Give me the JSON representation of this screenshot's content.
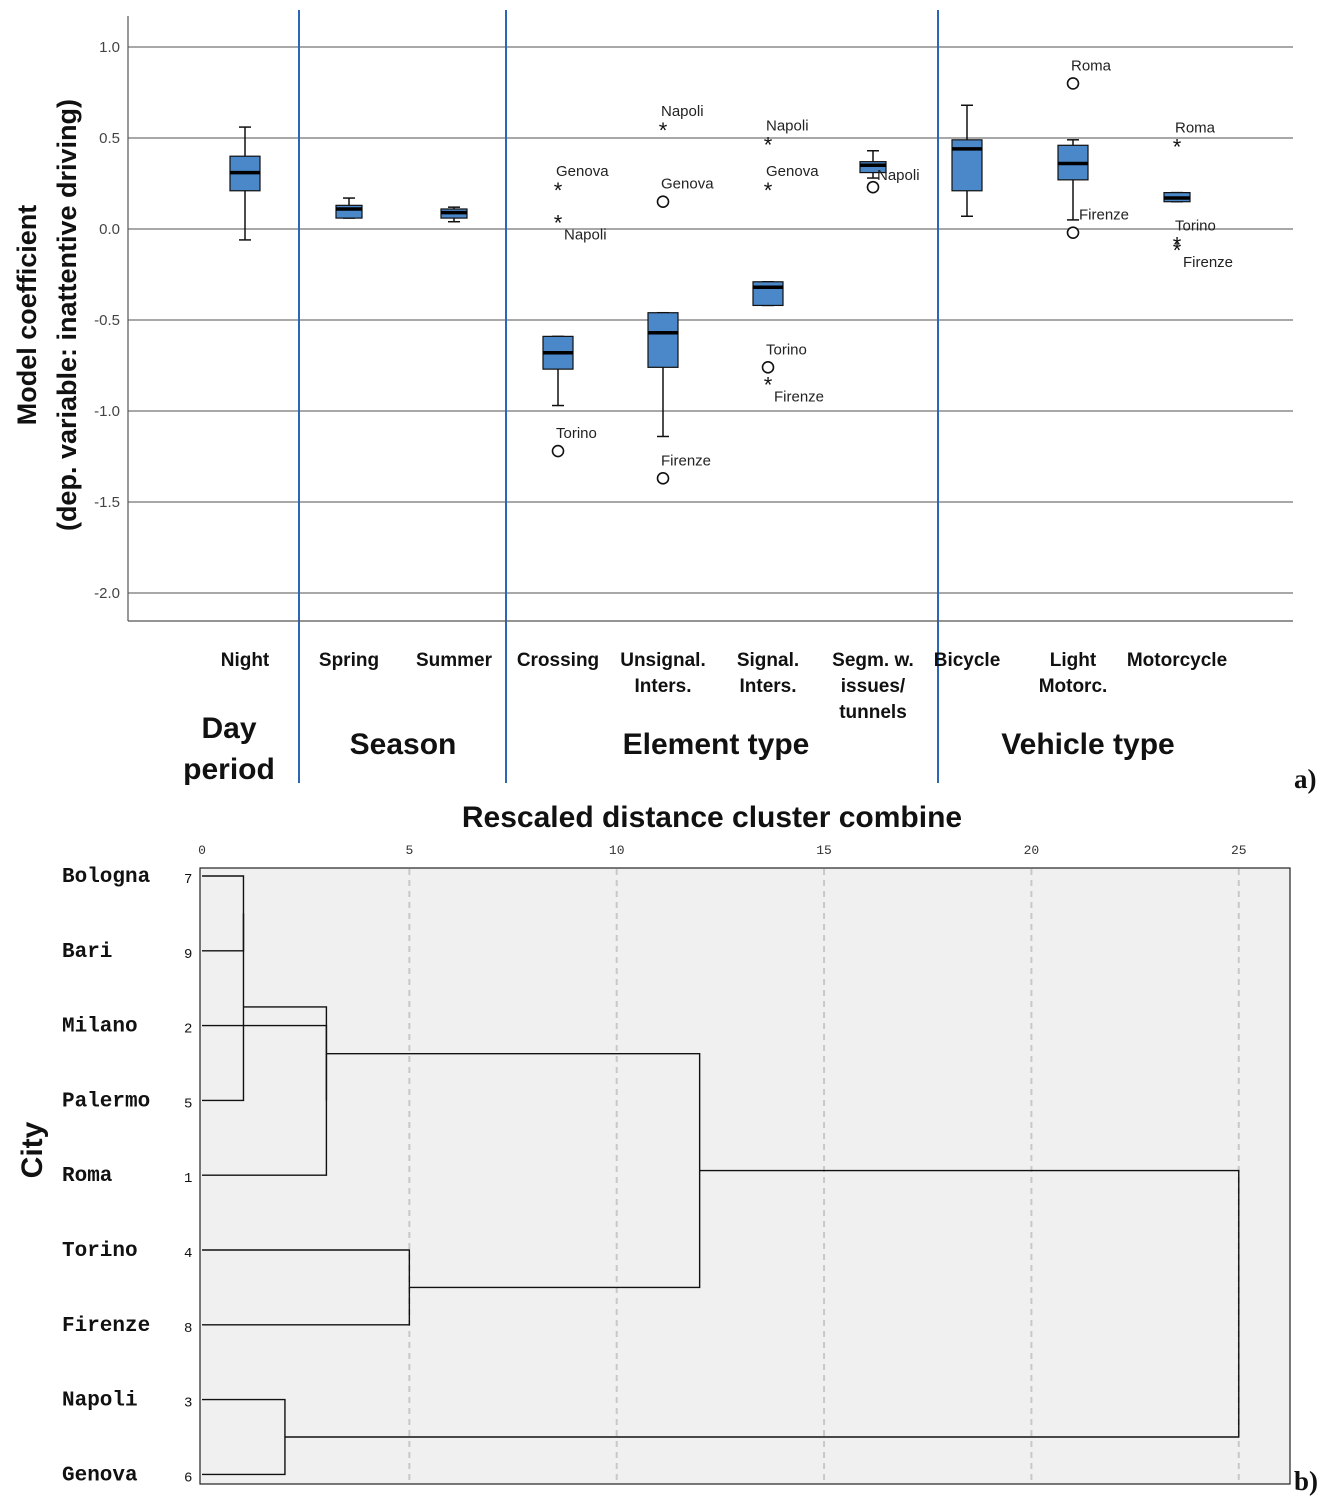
{
  "panel_a": {
    "tag": "a)",
    "ylabel_line1": "Model coefficient",
    "ylabel_line2": "(dep. variable: inattentive driving)",
    "chart_data": {
      "type": "boxplot",
      "ylabel": "Model coefficient (dep. variable: inattentive driving)",
      "ylim": [
        -2.15,
        1.15
      ],
      "yticks": [
        "1.0",
        "0.5",
        "0.0",
        "-0.5",
        "-1.0",
        "-1.5",
        "-2.0"
      ],
      "grid": true,
      "box_color": "#4a88c9",
      "groups": [
        {
          "name": "Day period",
          "name_lines": [
            "Day",
            "period"
          ]
        },
        {
          "name": "Season",
          "name_lines": [
            "Season"
          ]
        },
        {
          "name": "Element type",
          "name_lines": [
            "Element type"
          ]
        },
        {
          "name": "Vehicle type",
          "name_lines": [
            "Vehicle type"
          ]
        }
      ],
      "categories": [
        {
          "label_lines": [
            "Night"
          ],
          "group": 0,
          "box": {
            "whislo": -0.06,
            "q1": 0.21,
            "med": 0.31,
            "q3": 0.4,
            "whishi": 0.56
          },
          "outliers": []
        },
        {
          "label_lines": [
            "Spring"
          ],
          "group": 1,
          "box": {
            "whislo": 0.06,
            "q1": 0.06,
            "med": 0.11,
            "q3": 0.13,
            "whishi": 0.17
          },
          "outliers": []
        },
        {
          "label_lines": [
            "Summer"
          ],
          "group": 1,
          "box": {
            "whislo": 0.04,
            "q1": 0.06,
            "med": 0.09,
            "q3": 0.11,
            "whishi": 0.12
          },
          "outliers": []
        },
        {
          "label_lines": [
            "Crossing"
          ],
          "group": 2,
          "box": {
            "whislo": -0.97,
            "q1": -0.77,
            "med": -0.68,
            "q3": -0.59,
            "whishi": -0.59
          },
          "outliers": [
            {
              "value": 0.22,
              "marker": "star",
              "label": "Genova",
              "label_pos": "above"
            },
            {
              "value": 0.04,
              "marker": "star",
              "label": "Napoli",
              "label_pos": "below"
            },
            {
              "value": -1.22,
              "marker": "circle",
              "label": "Torino",
              "label_pos": "above"
            }
          ]
        },
        {
          "label_lines": [
            "Unsignal.",
            "Inters."
          ],
          "group": 2,
          "box": {
            "whislo": -1.14,
            "q1": -0.76,
            "med": -0.57,
            "q3": -0.46,
            "whishi": -0.46
          },
          "outliers": [
            {
              "value": 0.55,
              "marker": "star",
              "label": "Napoli",
              "label_pos": "above"
            },
            {
              "value": 0.15,
              "marker": "circle",
              "label": "Genova",
              "label_pos": "above"
            },
            {
              "value": -1.37,
              "marker": "circle",
              "label": "Firenze",
              "label_pos": "above"
            }
          ]
        },
        {
          "label_lines": [
            "Signal.",
            "Inters."
          ],
          "group": 2,
          "box": {
            "whislo": -0.42,
            "q1": -0.42,
            "med": -0.32,
            "q3": -0.29,
            "whishi": -0.29
          },
          "outliers": [
            {
              "value": 0.47,
              "marker": "star",
              "label": "Napoli",
              "label_pos": "above"
            },
            {
              "value": 0.22,
              "marker": "star",
              "label": "Genova",
              "label_pos": "above"
            },
            {
              "value": -0.76,
              "marker": "circle",
              "label": "Torino",
              "label_pos": "above"
            },
            {
              "value": -0.85,
              "marker": "star",
              "label": "Firenze",
              "label_pos": "below"
            }
          ]
        },
        {
          "label_lines": [
            "Segm. w.",
            "issues/",
            "tunnels"
          ],
          "group": 2,
          "box": {
            "whislo": 0.28,
            "q1": 0.31,
            "med": 0.35,
            "q3": 0.37,
            "whishi": 0.43
          },
          "outliers": [
            {
              "value": 0.23,
              "marker": "circle",
              "label": "Napoli",
              "label_pos": "right"
            }
          ]
        },
        {
          "label_lines": [
            "Bicycle"
          ],
          "group": 3,
          "box": {
            "whislo": 0.07,
            "q1": 0.21,
            "med": 0.44,
            "q3": 0.49,
            "whishi": 0.68
          },
          "outliers": []
        },
        {
          "label_lines": [
            "Light",
            "Motorc."
          ],
          "group": 3,
          "box": {
            "whislo": 0.05,
            "q1": 0.27,
            "med": 0.36,
            "q3": 0.46,
            "whishi": 0.49
          },
          "outliers": [
            {
              "value": 0.8,
              "marker": "circle",
              "label": "Roma",
              "label_pos": "above"
            },
            {
              "value": -0.02,
              "marker": "circle",
              "label": "Firenze",
              "label_pos": "aboveright"
            }
          ]
        },
        {
          "label_lines": [
            "Motorcycle"
          ],
          "group": 3,
          "box": {
            "whislo": 0.15,
            "q1": 0.15,
            "med": 0.17,
            "q3": 0.2,
            "whishi": 0.2
          },
          "outliers": [
            {
              "value": 0.46,
              "marker": "star",
              "label": "Roma",
              "label_pos": "above"
            },
            {
              "value": -0.08,
              "marker": "star",
              "label": "Torino",
              "label_pos": "above"
            },
            {
              "value": -0.11,
              "marker": "star",
              "label": "Firenze",
              "label_pos": "below"
            }
          ]
        }
      ]
    }
  },
  "panel_b": {
    "tag": "b)",
    "ylabel": "City",
    "chart_data": {
      "type": "dendrogram",
      "title": "Rescaled distance cluster combine",
      "xlim": [
        0,
        26
      ],
      "xticks": [
        0,
        5,
        10,
        15,
        20,
        25
      ],
      "ylabel": "City",
      "leaves": [
        {
          "city": "Bologna",
          "id": "7"
        },
        {
          "city": "Bari",
          "id": "9"
        },
        {
          "city": "Milano",
          "id": "2"
        },
        {
          "city": "Palermo",
          "id": "5"
        },
        {
          "city": "Roma",
          "id": "1"
        },
        {
          "city": "Torino",
          "id": "4"
        },
        {
          "city": "Firenze",
          "id": "8"
        },
        {
          "city": "Napoli",
          "id": "3"
        },
        {
          "city": "Genova",
          "id": "6"
        }
      ],
      "merges": [
        {
          "left": "Bologna",
          "right": "Bari",
          "distance": 1.0
        },
        {
          "left": "Bologna+Bari",
          "right": "Palermo",
          "distance": 1.0
        },
        {
          "left": "Milano",
          "right": "Roma",
          "distance": 3.0
        },
        {
          "left": "Torino",
          "right": "Firenze",
          "distance": 5.0
        },
        {
          "left": "Napoli",
          "right": "Genova",
          "distance": 2.0
        },
        {
          "left": "Bologna+Bari+Palermo",
          "right": "Milano+Roma",
          "distance": 3.0
        },
        {
          "left": "Bologna+Bari+Palermo+Milano+Roma",
          "right": "Torino+Firenze",
          "distance": 12.0
        },
        {
          "left": "Bologna+Bari+Palermo+Milano+Roma+Torino+Firenze",
          "right": "Napoli+Genova",
          "distance": 25.0
        }
      ]
    }
  }
}
